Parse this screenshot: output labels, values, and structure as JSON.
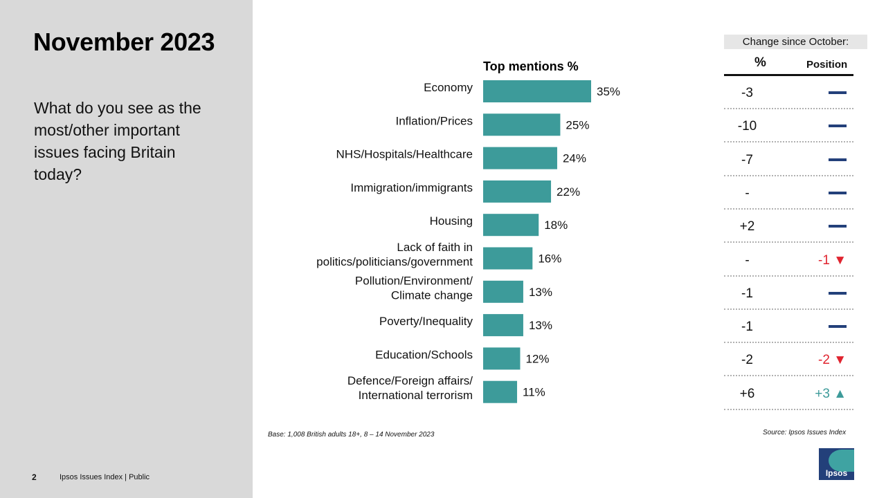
{
  "slide": {
    "title": "November 2023",
    "question": "What do you see as the most/other important issues facing Britain today?",
    "page_number": "2",
    "footer": "Ipsos Issues Index | Public",
    "base_note": "Base: 1,008 British adults 18+, 8 – 14 November 2023",
    "source": "Source: Ipsos Issues Index",
    "logo_text": "Ipsos"
  },
  "change": {
    "header": "Change since October:",
    "pct_header": "%",
    "pos_header": "Position",
    "rows": [
      {
        "pct": "-3",
        "pos_text": "",
        "dir": "none"
      },
      {
        "pct": "-10",
        "pos_text": "",
        "dir": "none"
      },
      {
        "pct": "-7",
        "pos_text": "",
        "dir": "none"
      },
      {
        "pct": "-",
        "pos_text": "",
        "dir": "none"
      },
      {
        "pct": "+2",
        "pos_text": "",
        "dir": "none"
      },
      {
        "pct": "-",
        "pos_text": "-1",
        "dir": "down"
      },
      {
        "pct": "-1",
        "pos_text": "",
        "dir": "none"
      },
      {
        "pct": "-1",
        "pos_text": "",
        "dir": "none"
      },
      {
        "pct": "-2",
        "pos_text": "-2",
        "dir": "down"
      },
      {
        "pct": "+6",
        "pos_text": "+3",
        "dir": "up"
      }
    ]
  },
  "colors": {
    "bar": "#3d9b9a",
    "dash": "#23407a",
    "down": "#e0242f",
    "up": "#3d9b9a"
  },
  "chart_data": {
    "type": "bar",
    "orientation": "horizontal",
    "title": "Top mentions %",
    "categories": [
      [
        "Economy"
      ],
      [
        "Inflation/Prices"
      ],
      [
        "NHS/Hospitals/Healthcare"
      ],
      [
        "Immigration/immigrants"
      ],
      [
        "Housing"
      ],
      [
        "Lack of faith in",
        "politics/politicians/government"
      ],
      [
        "Pollution/Environment/",
        "Climate change"
      ],
      [
        "Poverty/Inequality"
      ],
      [
        "Education/Schools"
      ],
      [
        "Defence/Foreign affairs/",
        "International terrorism"
      ]
    ],
    "values": [
      35,
      25,
      24,
      22,
      18,
      16,
      13,
      13,
      12,
      11
    ],
    "value_suffix": "%",
    "xlim": [
      0,
      35
    ]
  }
}
